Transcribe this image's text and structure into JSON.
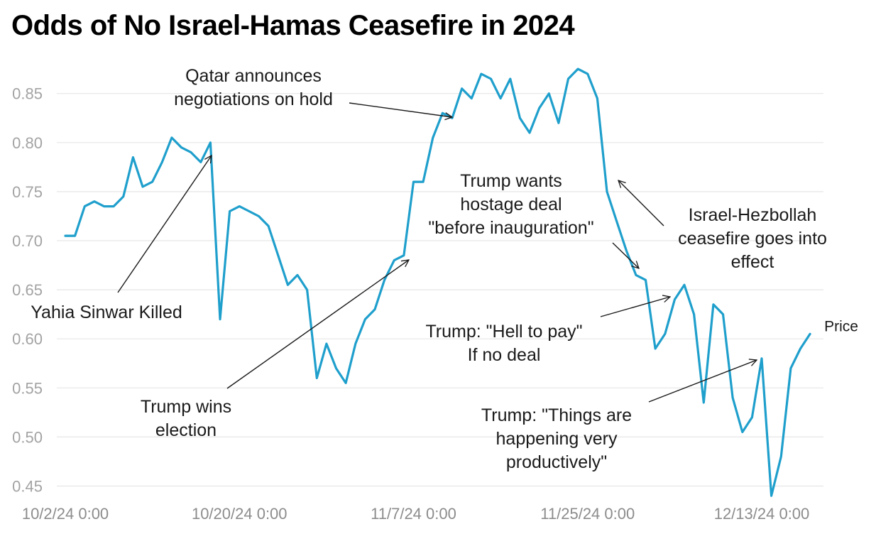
{
  "title": "Odds of No Israel-Hamas Ceasefire in 2024",
  "colors": {
    "line": "#1f9fcc",
    "grid": "#e6e6e6"
  },
  "chart_data": {
    "type": "line",
    "title": "Odds of No Israel-Hamas Ceasefire in 2024",
    "xlabel": "",
    "ylabel": "",
    "ylim": [
      0.45,
      0.875
    ],
    "xlim": [
      0,
      77
    ],
    "y_ticks": [
      "0.45",
      "0.50",
      "0.55",
      "0.60",
      "0.65",
      "0.70",
      "0.75",
      "0.80",
      "0.85"
    ],
    "x_ticks": [
      {
        "label": "10/2/24 0:00",
        "day": 0
      },
      {
        "label": "10/20/24 0:00",
        "day": 18
      },
      {
        "label": "11/7/24 0:00",
        "day": 36
      },
      {
        "label": "11/25/24 0:00",
        "day": 54
      },
      {
        "label": "12/13/24 0:00",
        "day": 72
      }
    ],
    "grid": true,
    "series": [
      {
        "name": "Price",
        "x_unit": "days since 10/2/24",
        "x": [
          0,
          1,
          2,
          3,
          4,
          5,
          6,
          7,
          8,
          9,
          10,
          11,
          12,
          13,
          14,
          15,
          16,
          17,
          18,
          19,
          20,
          21,
          22,
          23,
          24,
          25,
          26,
          27,
          28,
          29,
          30,
          31,
          32,
          33,
          34,
          35,
          36,
          37,
          38,
          39,
          40,
          41,
          42,
          43,
          44,
          45,
          46,
          47,
          48,
          49,
          50,
          51,
          52,
          53,
          54,
          55,
          56,
          57,
          58,
          59,
          60,
          61,
          62,
          63,
          64,
          65,
          66,
          67,
          68,
          69,
          70,
          71,
          72,
          73,
          74,
          75,
          76,
          77
        ],
        "values": [
          0.705,
          0.705,
          0.735,
          0.74,
          0.735,
          0.735,
          0.745,
          0.785,
          0.755,
          0.76,
          0.78,
          0.805,
          0.795,
          0.79,
          0.78,
          0.8,
          0.62,
          0.73,
          0.735,
          0.73,
          0.725,
          0.715,
          0.685,
          0.655,
          0.665,
          0.65,
          0.56,
          0.595,
          0.57,
          0.555,
          0.595,
          0.62,
          0.63,
          0.66,
          0.68,
          0.685,
          0.76,
          0.76,
          0.805,
          0.83,
          0.825,
          0.855,
          0.845,
          0.87,
          0.865,
          0.845,
          0.865,
          0.825,
          0.81,
          0.835,
          0.85,
          0.82,
          0.865,
          0.875,
          0.87,
          0.845,
          0.75,
          0.72,
          0.69,
          0.665,
          0.66,
          0.59,
          0.605,
          0.64,
          0.655,
          0.625,
          0.535,
          0.635,
          0.625,
          0.54,
          0.505,
          0.52,
          0.58,
          0.44,
          0.48,
          0.57,
          0.59,
          0.605
        ]
      }
    ],
    "annotations": [
      {
        "lines": [
          "Qatar announces",
          "negotiations on hold"
        ],
        "day": 39.8
      },
      {
        "lines": [
          "Yahia Sinwar Killed"
        ],
        "day": 15.0
      },
      {
        "lines": [
          "Trump wants",
          "hostage deal",
          "\"before inauguration\""
        ],
        "day": 59.6
      },
      {
        "lines": [
          "Israel-Hezbollah",
          "ceasefire goes into",
          "effect"
        ],
        "day": 56.0
      },
      {
        "lines": [
          "Trump wins",
          "election"
        ],
        "day": 35.0
      },
      {
        "lines": [
          "Trump: \"Hell to pay\"",
          "If no deal"
        ],
        "day": 63.0
      },
      {
        "lines": [
          "Trump: \"Things are",
          "happening very",
          "productively\""
        ],
        "day": 72.0
      }
    ]
  }
}
